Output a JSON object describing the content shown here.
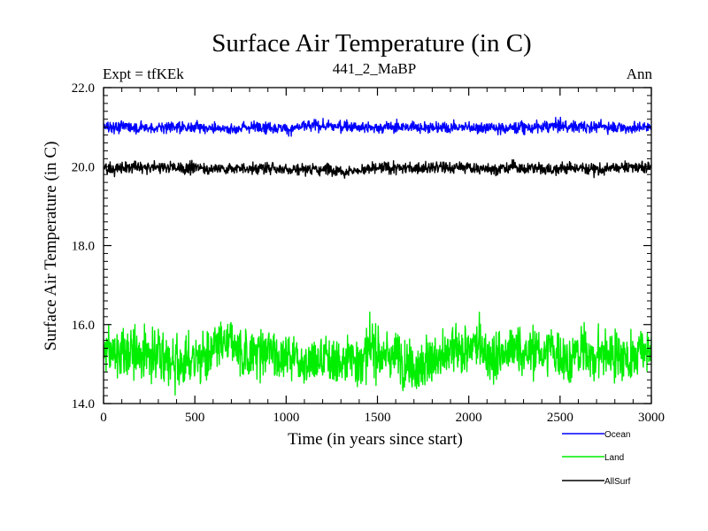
{
  "chart_data": {
    "type": "line",
    "title": "Surface Air Temperature (in C)",
    "subtitle_left": "Expt = tfKEk",
    "subtitle_center": "441_2_MaBP",
    "subtitle_right": "Ann",
    "xlabel": "Time (in years since start)",
    "ylabel": "Surface Air Temperature (in C)",
    "xlim": [
      0,
      3000
    ],
    "ylim": [
      14.0,
      22.0
    ],
    "x_ticks": [
      0,
      500,
      1000,
      1500,
      2000,
      2500,
      3000
    ],
    "x_tick_labels": [
      "0",
      "500",
      "1000",
      "1500",
      "2000",
      "2500",
      "3000"
    ],
    "y_ticks": [
      14.0,
      16.0,
      18.0,
      20.0,
      22.0
    ],
    "y_tick_labels": [
      "14.0",
      "16.0",
      "18.0",
      "20.0",
      "22.0"
    ],
    "grid": false,
    "legend_position": "bottom-right",
    "series": [
      {
        "name": "Ocean",
        "color": "#0000ff",
        "mean": 21.02,
        "amplitude": 0.08
      },
      {
        "name": "Land",
        "color": "#00ee00",
        "mean": 15.25,
        "amplitude": 0.35
      },
      {
        "name": "AllSurf",
        "color": "#000000",
        "mean": 19.96,
        "amplitude": 0.08
      }
    ]
  }
}
